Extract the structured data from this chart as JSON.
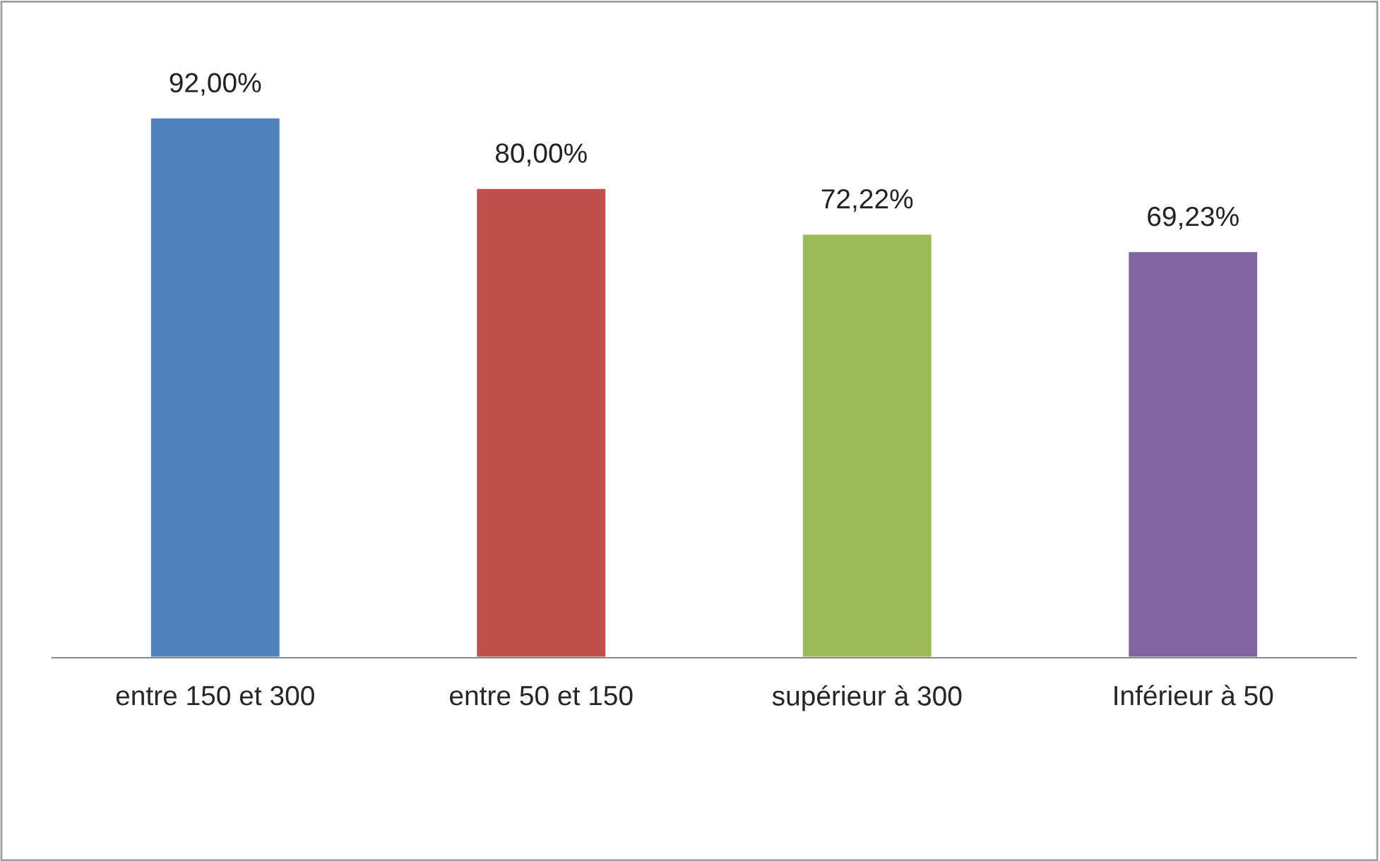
{
  "chart_data": {
    "type": "bar",
    "categories": [
      "entre 150 et 300",
      "entre 50 et 150",
      "supérieur à 300",
      "Inférieur à 50"
    ],
    "values": [
      92.0,
      80.0,
      72.22,
      69.23
    ],
    "colors": [
      "#4f81bd",
      "#c0504d",
      "#9bbb59",
      "#8064a2"
    ],
    "value_labels": [
      "92,00%",
      "80,00%",
      "72,22%",
      "69,23%"
    ],
    "grid": false,
    "legend": false
  }
}
